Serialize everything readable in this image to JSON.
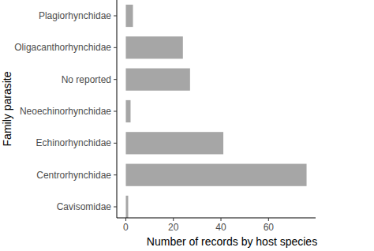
{
  "chart_data": {
    "type": "bar",
    "orientation": "horizontal",
    "x_label": "Number of records by host species",
    "y_label": "Family parasite",
    "categories": [
      "Plagiorhynchidae",
      "Oligacanthorhynchidae",
      "No reported",
      "Neoechinorhynchidae",
      "Echinorhynchidae",
      "Centrorhynchidae",
      "Cavisomidae"
    ],
    "values": [
      3,
      24,
      27,
      2,
      41,
      76,
      1
    ],
    "color": "#a6a6a6",
    "xlim": [
      -3.8,
      79.8
    ],
    "xticks": [
      0,
      20,
      40,
      60
    ],
    "grid": false
  }
}
